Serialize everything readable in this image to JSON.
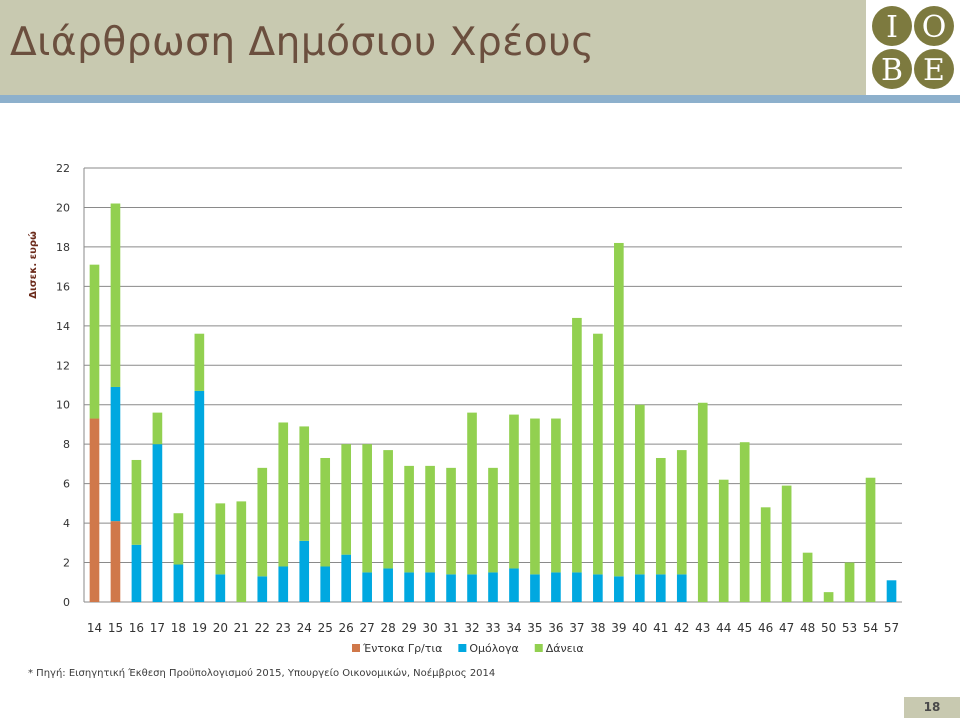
{
  "slide": {
    "title": "Διάρθρωση Δημόσιου Χρέους",
    "source_note": "* Πηγή: Εισηγητική Έκθεση Προϋπολογισμού 2015, Υπουργείο Οικονομικών, Νοέμβριος 2014",
    "page_number": "18",
    "logo": {
      "letters": [
        "I",
        "O",
        "B",
        "E"
      ],
      "circle_color": "#7d7a3f",
      "letter_color": "#ffffff"
    },
    "colors": {
      "header_bg": "#c8c9b0",
      "header_rule": "#8db0cc",
      "title_color": "#6b4f3e"
    }
  },
  "chart_data": {
    "type": "bar",
    "stacked": true,
    "title": "",
    "ylabel": "Δισεκ. ευρώ",
    "xlabel": "",
    "ylim": [
      0,
      22
    ],
    "yticks": [
      0,
      2,
      4,
      6,
      8,
      10,
      12,
      14,
      16,
      18,
      20,
      22
    ],
    "grid": true,
    "legend_position": "bottom",
    "categories": [
      "14",
      "15",
      "16",
      "17",
      "18",
      "19",
      "20",
      "21",
      "22",
      "23",
      "24",
      "25",
      "26",
      "27",
      "28",
      "29",
      "30",
      "31",
      "32",
      "33",
      "34",
      "35",
      "36",
      "37",
      "38",
      "39",
      "40",
      "41",
      "42",
      "43",
      "44",
      "45",
      "46",
      "47",
      "48",
      "50",
      "53",
      "54",
      "57"
    ],
    "series": [
      {
        "name": "Έντοκα Γρ/τια",
        "color": "#d0784a",
        "values": [
          9.3,
          4.1,
          0,
          0,
          0,
          0,
          0,
          0,
          0,
          0,
          0,
          0,
          0,
          0,
          0,
          0,
          0,
          0,
          0,
          0,
          0,
          0,
          0,
          0,
          0,
          0,
          0,
          0,
          0,
          0,
          0,
          0,
          0,
          0,
          0,
          0,
          0,
          0,
          0
        ]
      },
      {
        "name": "Ομόλογα",
        "color": "#00a8e0",
        "values": [
          0,
          6.8,
          2.9,
          8.0,
          1.9,
          10.7,
          1.4,
          0,
          1.3,
          1.8,
          3.1,
          1.8,
          2.4,
          1.5,
          1.7,
          1.5,
          1.5,
          1.4,
          1.4,
          1.5,
          1.7,
          1.4,
          1.5,
          1.5,
          1.4,
          1.3,
          1.4,
          1.4,
          1.4,
          0,
          0,
          0,
          0,
          0,
          0,
          0,
          0,
          0,
          1.1
        ]
      },
      {
        "name": "Δάνεια",
        "color": "#92d050",
        "values": [
          7.8,
          9.3,
          4.3,
          1.6,
          2.6,
          2.9,
          3.6,
          5.1,
          5.5,
          7.3,
          5.8,
          5.5,
          5.6,
          6.5,
          6.0,
          5.4,
          5.4,
          5.4,
          8.2,
          5.3,
          7.8,
          7.9,
          7.8,
          12.9,
          12.2,
          16.9,
          8.6,
          5.9,
          6.3,
          10.1,
          6.2,
          8.1,
          4.8,
          5.9,
          2.5,
          0.5,
          2.0,
          6.3,
          0
        ]
      }
    ]
  }
}
